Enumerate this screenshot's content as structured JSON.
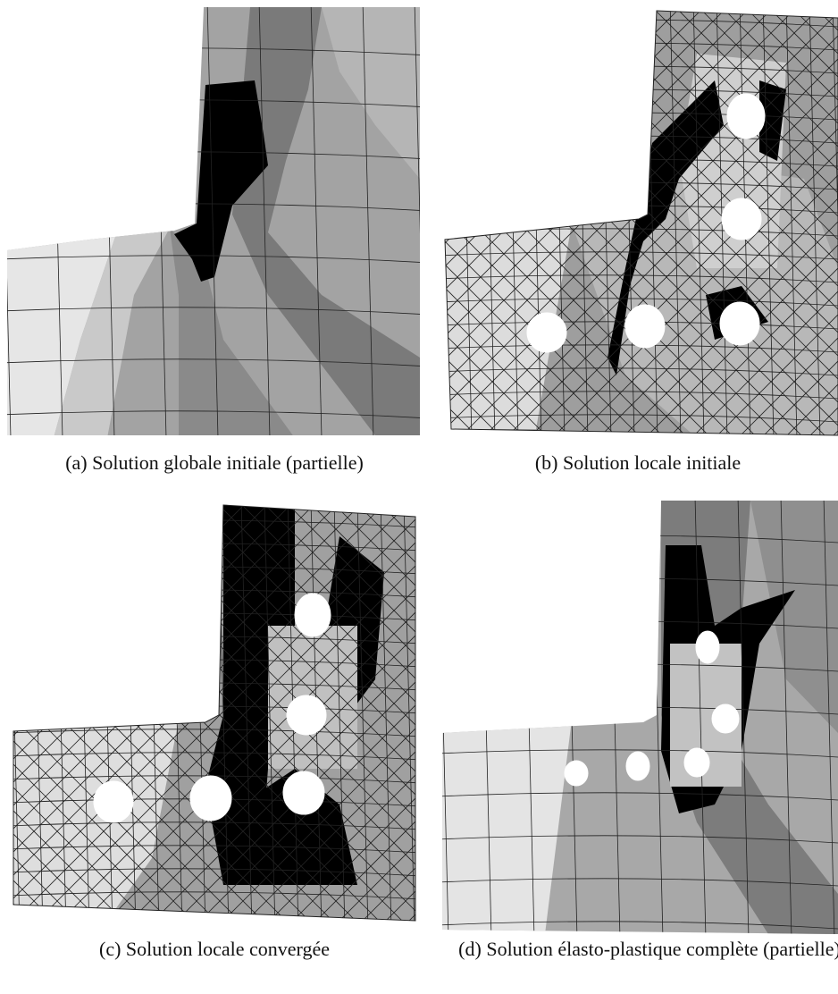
{
  "figures": [
    {
      "label": "(a)",
      "caption": "Solution globale initiale (partielle)"
    },
    {
      "label": "(b)",
      "caption": "Solution locale initiale"
    },
    {
      "label": "(c)",
      "caption": "Solution locale convergée"
    },
    {
      "label": "(d)",
      "caption": "Solution élasto-plastique complète (partielle)"
    }
  ]
}
